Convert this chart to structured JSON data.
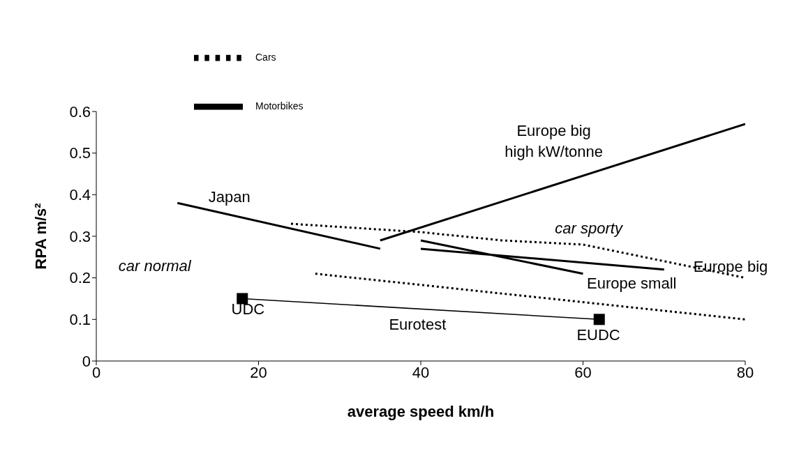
{
  "chart_data": {
    "type": "line",
    "xlabel": "average speed   km/h",
    "ylabel": "RPA   m/s²",
    "xlim": [
      0,
      80
    ],
    "xticks": [
      0,
      20,
      40,
      60,
      80
    ],
    "ylim": [
      0,
      0.6
    ],
    "yticks": [
      0,
      0.1,
      0.2,
      0.3,
      0.4,
      0.5,
      0.6
    ],
    "grid": false,
    "legend": "top left",
    "marker": "none",
    "series": [
      {
        "name": "Motorbikes",
        "color": "#000000",
        "line_style": "solid",
        "x": [
          10,
          35,
          null,
          35,
          80,
          null,
          40,
          60,
          null,
          40,
          70
        ],
        "values": [
          0.38,
          0.27,
          null,
          0.29,
          0.57,
          null,
          0.29,
          0.21,
          null,
          0.27,
          0.22
        ]
      },
      {
        "name": "Cars",
        "color": "#000000",
        "line_style": "dotted",
        "x": [
          24,
          40,
          50,
          60,
          80,
          null,
          27,
          80
        ],
        "values": [
          0.33,
          0.31,
          0.29,
          0.28,
          0.2,
          null,
          0.21,
          0.1
        ]
      },
      {
        "color": "#000000",
        "line_style": "solid",
        "marker": "square",
        "x": [
          18,
          62
        ],
        "values": [
          0.15,
          0.1
        ]
      }
    ],
    "annotations": [
      "Japan",
      "Europe big\nhigh kW/tonne",
      "car sporty",
      "Europe big",
      "Europe small",
      "car normal",
      "UDC",
      "Eurotest",
      "EUDC"
    ]
  }
}
